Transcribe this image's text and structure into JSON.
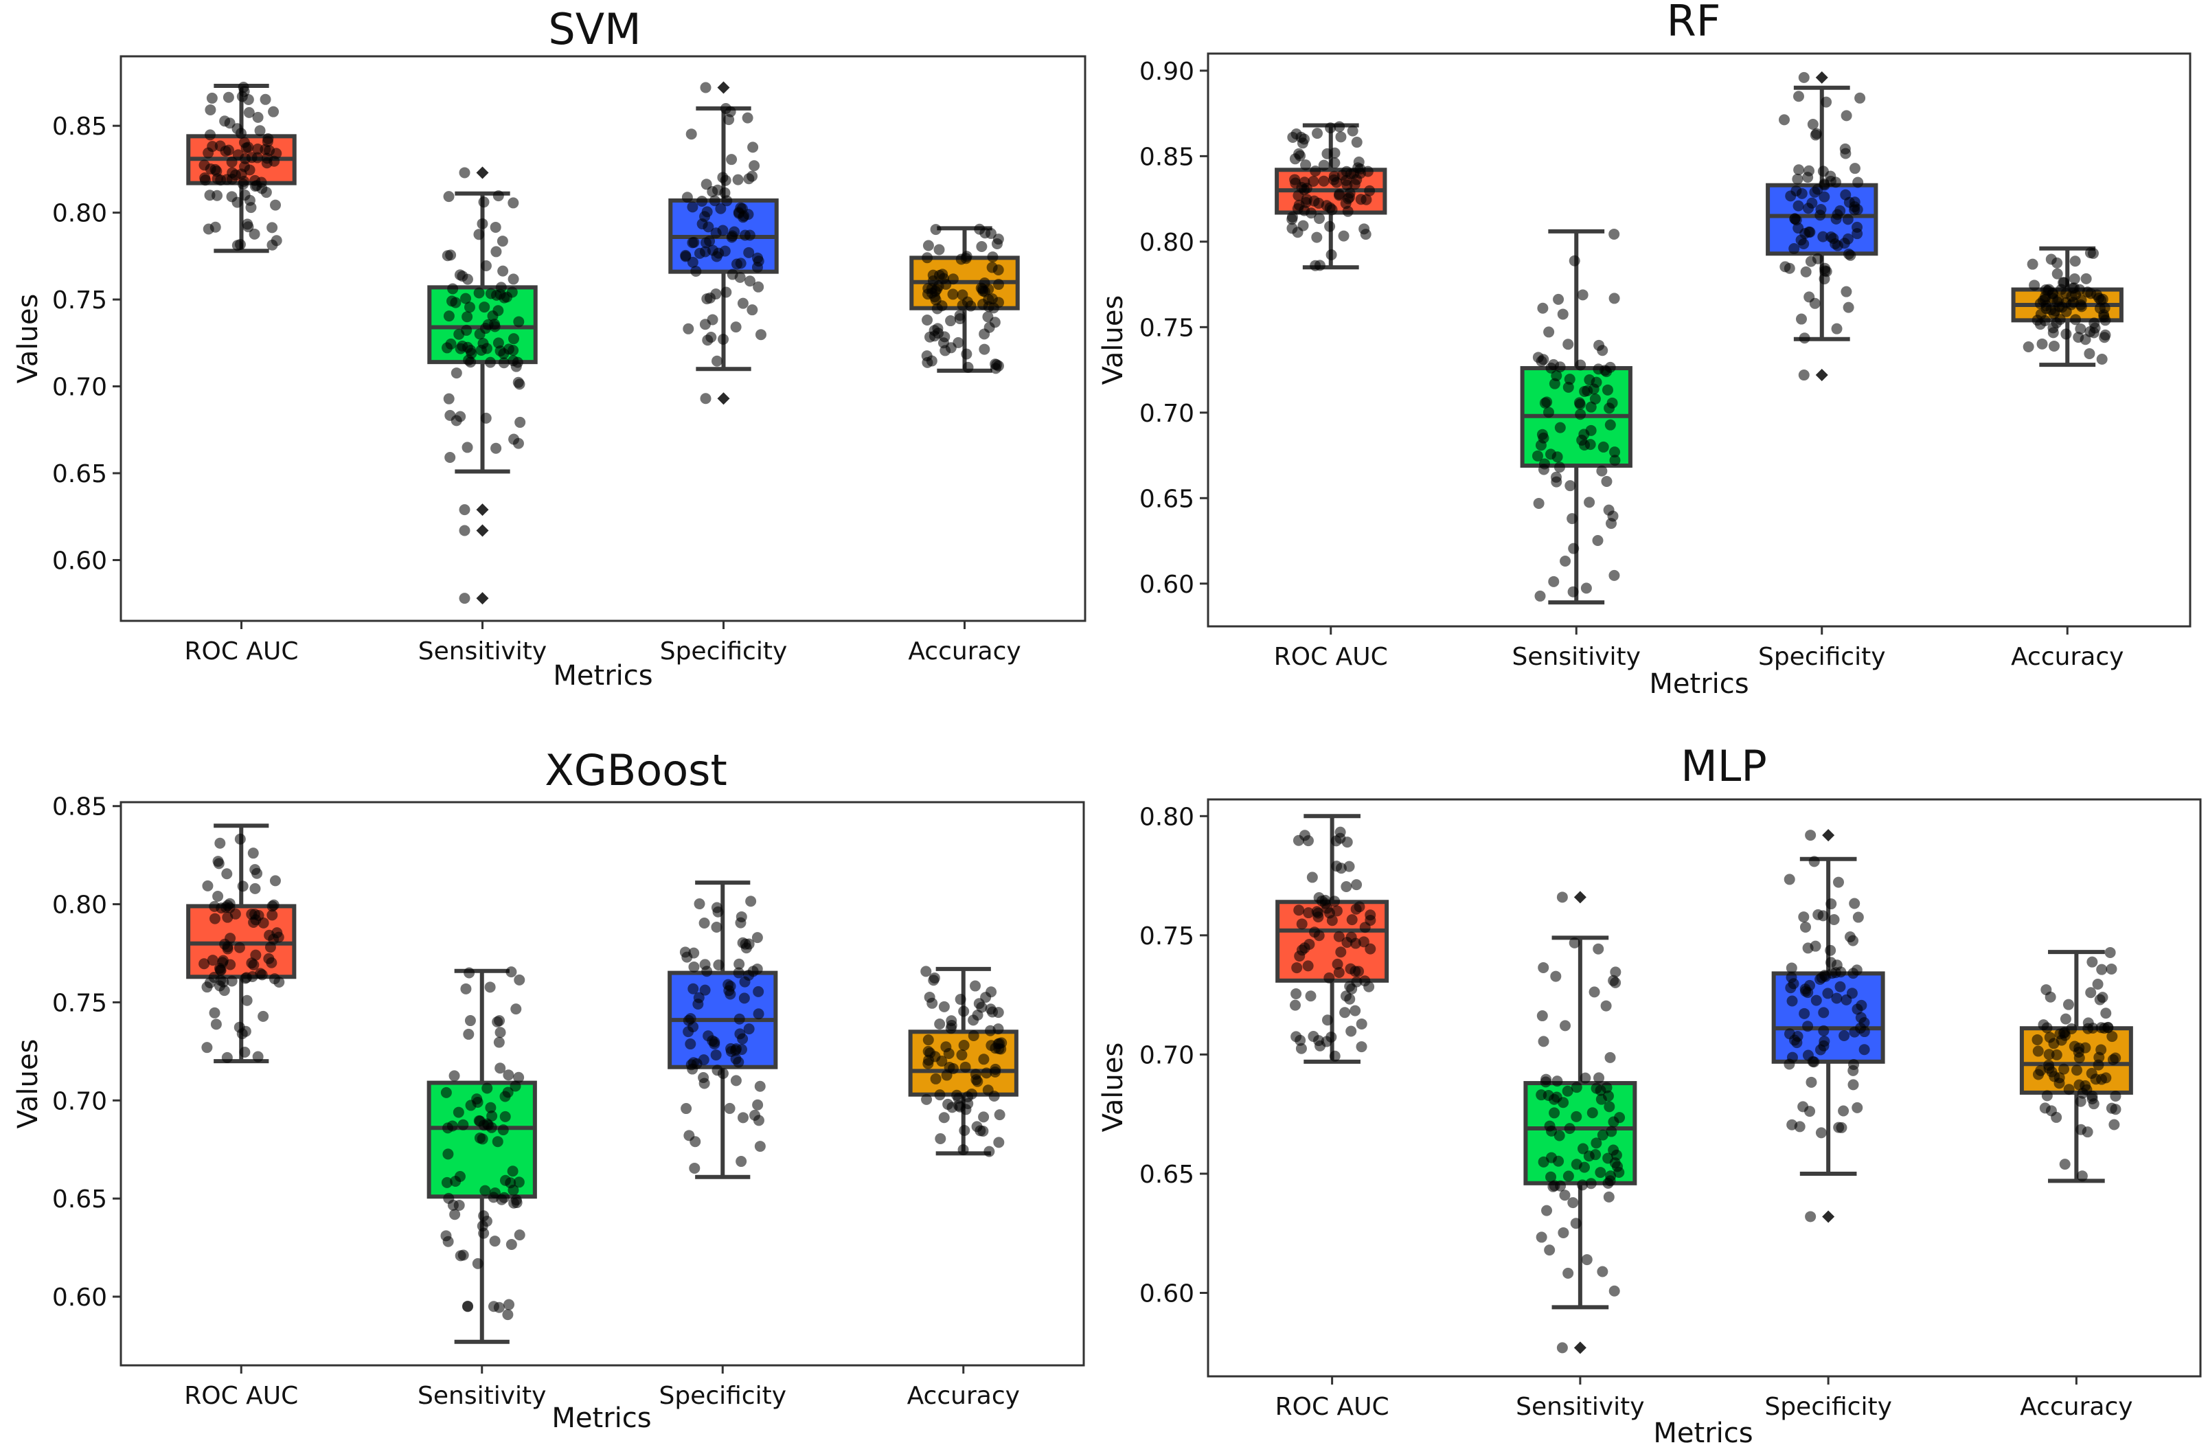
{
  "figure": {
    "xlabel": "Metrics",
    "ylabel": "Values"
  },
  "colors": {
    "ROC AUC": "#ff5a3c",
    "Sensitivity": "#00e050",
    "Specificity": "#3660ff",
    "Accuracy": "#e79a08"
  },
  "chart_data": [
    {
      "type": "box",
      "title": "SVM",
      "xlabel": "Metrics",
      "ylabel": "Values",
      "categories": [
        "ROC AUC",
        "Sensitivity",
        "Specificity",
        "Accuracy"
      ],
      "ylim": [
        0.565,
        0.89
      ],
      "yticks": [
        0.6,
        0.65,
        0.7,
        0.75,
        0.8,
        0.85
      ],
      "ytick_labels": [
        "0.60",
        "0.65",
        "0.70",
        "0.75",
        "0.80",
        "0.85"
      ],
      "boxes": [
        {
          "category": "ROC AUC",
          "whislo": 0.778,
          "q1": 0.817,
          "med": 0.831,
          "q3": 0.844,
          "whishi": 0.873,
          "fliers": []
        },
        {
          "category": "Sensitivity",
          "whislo": 0.651,
          "q1": 0.714,
          "med": 0.734,
          "q3": 0.757,
          "whishi": 0.811,
          "fliers": [
            0.823,
            0.629,
            0.617,
            0.578
          ]
        },
        {
          "category": "Specificity",
          "whislo": 0.71,
          "q1": 0.766,
          "med": 0.786,
          "q3": 0.807,
          "whishi": 0.86,
          "fliers": [
            0.872,
            0.693
          ]
        },
        {
          "category": "Accuracy",
          "whislo": 0.709,
          "q1": 0.745,
          "med": 0.76,
          "q3": 0.774,
          "whishi": 0.791,
          "fliers": []
        }
      ]
    },
    {
      "type": "box",
      "title": "RF",
      "xlabel": "Metrics",
      "ylabel": "Values",
      "categories": [
        "ROC AUC",
        "Sensitivity",
        "Specificity",
        "Accuracy"
      ],
      "ylim": [
        0.575,
        0.91
      ],
      "yticks": [
        0.6,
        0.65,
        0.7,
        0.75,
        0.8,
        0.85,
        0.9
      ],
      "ytick_labels": [
        "0.60",
        "0.65",
        "0.70",
        "0.75",
        "0.80",
        "0.85",
        "0.90"
      ],
      "boxes": [
        {
          "category": "ROC AUC",
          "whislo": 0.785,
          "q1": 0.817,
          "med": 0.83,
          "q3": 0.842,
          "whishi": 0.868,
          "fliers": []
        },
        {
          "category": "Sensitivity",
          "whislo": 0.589,
          "q1": 0.669,
          "med": 0.698,
          "q3": 0.726,
          "whishi": 0.806,
          "fliers": []
        },
        {
          "category": "Specificity",
          "whislo": 0.743,
          "q1": 0.793,
          "med": 0.815,
          "q3": 0.833,
          "whishi": 0.89,
          "fliers": [
            0.896,
            0.722
          ]
        },
        {
          "category": "Accuracy",
          "whislo": 0.728,
          "q1": 0.754,
          "med": 0.763,
          "q3": 0.772,
          "whishi": 0.796,
          "fliers": []
        }
      ]
    },
    {
      "type": "box",
      "title": "XGBoost",
      "xlabel": "Metrics",
      "ylabel": "Values",
      "categories": [
        "ROC AUC",
        "Sensitivity",
        "Specificity",
        "Accuracy"
      ],
      "ylim": [
        0.565,
        0.852
      ],
      "yticks": [
        0.6,
        0.65,
        0.7,
        0.75,
        0.8,
        0.85
      ],
      "ytick_labels": [
        "0.60",
        "0.65",
        "0.70",
        "0.75",
        "0.80",
        "0.85"
      ],
      "boxes": [
        {
          "category": "ROC AUC",
          "whislo": 0.72,
          "q1": 0.763,
          "med": 0.78,
          "q3": 0.799,
          "whishi": 0.84,
          "fliers": []
        },
        {
          "category": "Sensitivity",
          "whislo": 0.577,
          "q1": 0.651,
          "med": 0.686,
          "q3": 0.709,
          "whishi": 0.766,
          "fliers": []
        },
        {
          "category": "Specificity",
          "whislo": 0.661,
          "q1": 0.717,
          "med": 0.741,
          "q3": 0.765,
          "whishi": 0.811,
          "fliers": []
        },
        {
          "category": "Accuracy",
          "whislo": 0.673,
          "q1": 0.703,
          "med": 0.715,
          "q3": 0.735,
          "whishi": 0.767,
          "fliers": []
        }
      ]
    },
    {
      "type": "box",
      "title": "MLP",
      "xlabel": "Metrics",
      "ylabel": "Values",
      "categories": [
        "ROC AUC",
        "Sensitivity",
        "Specificity",
        "Accuracy"
      ],
      "ylim": [
        0.565,
        0.807
      ],
      "yticks": [
        0.6,
        0.65,
        0.7,
        0.75,
        0.8
      ],
      "ytick_labels": [
        "0.60",
        "0.65",
        "0.70",
        "0.75",
        "0.80"
      ],
      "boxes": [
        {
          "category": "ROC AUC",
          "whislo": 0.697,
          "q1": 0.731,
          "med": 0.752,
          "q3": 0.764,
          "whishi": 0.8,
          "fliers": []
        },
        {
          "category": "Sensitivity",
          "whislo": 0.594,
          "q1": 0.646,
          "med": 0.669,
          "q3": 0.688,
          "whishi": 0.749,
          "fliers": [
            0.766,
            0.577
          ]
        },
        {
          "category": "Specificity",
          "whislo": 0.65,
          "q1": 0.697,
          "med": 0.711,
          "q3": 0.734,
          "whishi": 0.782,
          "fliers": [
            0.792,
            0.632
          ]
        },
        {
          "category": "Accuracy",
          "whislo": 0.647,
          "q1": 0.684,
          "med": 0.696,
          "q3": 0.711,
          "whishi": 0.743,
          "fliers": []
        }
      ]
    }
  ]
}
